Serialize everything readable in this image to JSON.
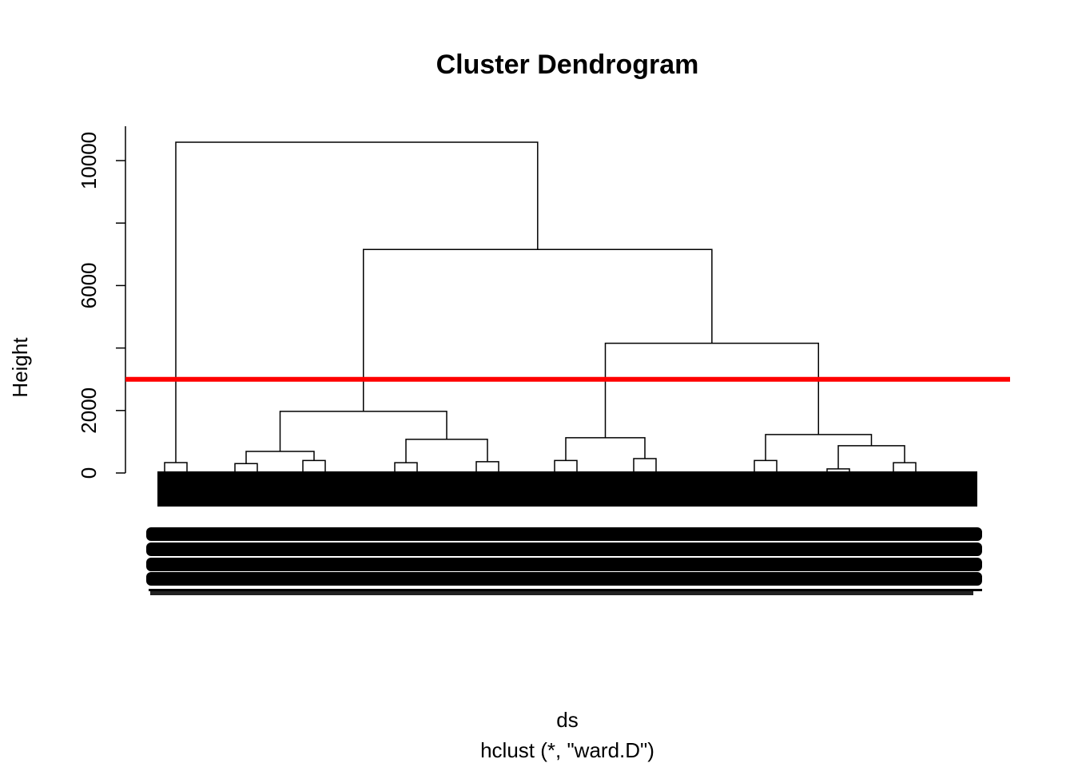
{
  "chart_data": {
    "type": "dendrogram",
    "title": "Cluster Dendrogram",
    "y_label": "Height",
    "x_label": "ds",
    "subtitle": "hclust (*, \"ward.D\")",
    "ylim": [
      0,
      11100
    ],
    "yticks": [
      0,
      2000,
      6000,
      10000
    ],
    "yticks_minor": [
      4000,
      8000
    ],
    "leaves": [
      333,
      300,
      400,
      330,
      360,
      400,
      460,
      400,
      130,
      330
    ],
    "merges": [
      {
        "height": 692,
        "left": -2,
        "right": -3
      },
      {
        "height": 1077,
        "left": -4,
        "right": -5
      },
      {
        "height": 1974,
        "left": 1,
        "right": 2
      },
      {
        "height": 1128,
        "left": -6,
        "right": -7
      },
      {
        "height": 872,
        "left": -9,
        "right": -10
      },
      {
        "height": 1231,
        "left": -8,
        "right": 5
      },
      {
        "height": 4154,
        "left": 4,
        "right": 6
      },
      {
        "height": 7154,
        "left": 3,
        "right": 7
      },
      {
        "height": 10590,
        "left": -1,
        "right": 8
      }
    ],
    "cut_height": 3000,
    "cut_color": "#ff0000",
    "color": "#000000"
  }
}
